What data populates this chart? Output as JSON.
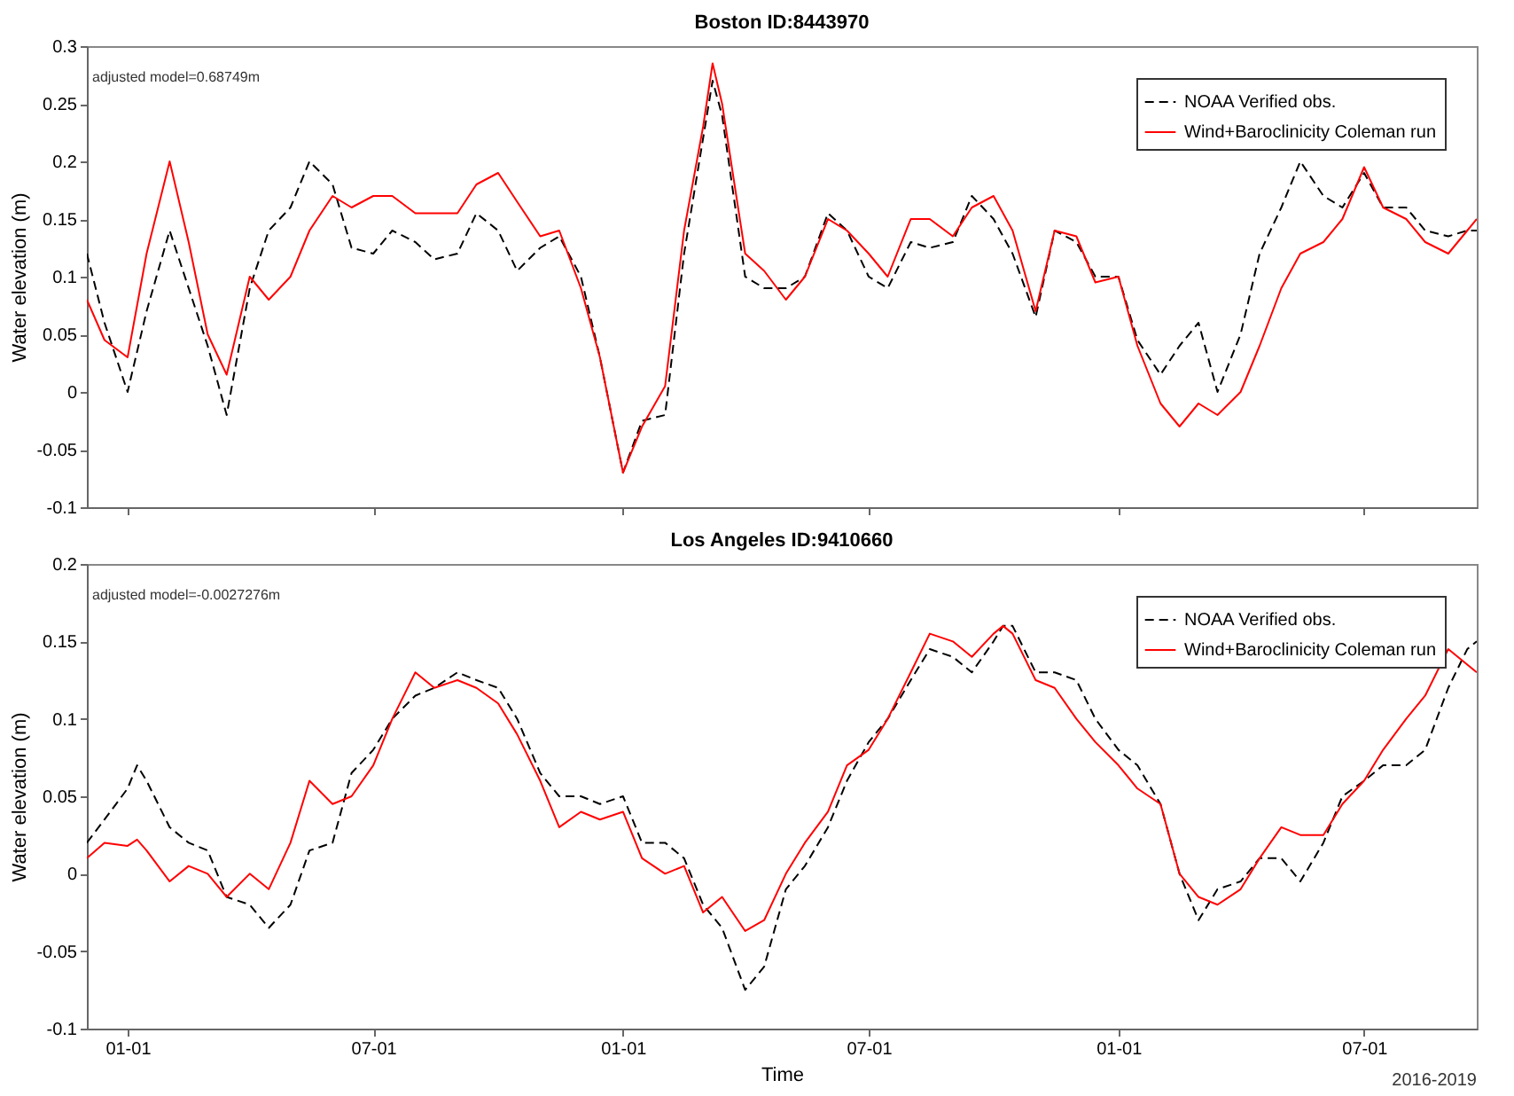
{
  "chart_data": [
    {
      "type": "line",
      "title": "Boston ID:8443970",
      "ylabel": "Water elevation (m)",
      "annotations": [
        "adjusted model=0.68749m"
      ],
      "x": [
        "2016-12-02",
        "2016-12-15",
        "2017-01-01",
        "2017-01-15",
        "2017-02-01",
        "2017-02-15",
        "2017-03-01",
        "2017-03-15",
        "2017-04-01",
        "2017-04-15",
        "2017-05-01",
        "2017-05-15",
        "2017-06-01",
        "2017-06-15",
        "2017-07-01",
        "2017-07-15",
        "2017-08-01",
        "2017-08-15",
        "2017-09-01",
        "2017-09-15",
        "2017-10-01",
        "2017-10-15",
        "2017-11-01",
        "2017-11-15",
        "2017-12-01",
        "2017-12-15",
        "2018-01-01",
        "2018-01-15",
        "2018-02-01",
        "2018-02-15",
        "2018-03-01",
        "2018-03-08",
        "2018-03-15",
        "2018-04-01",
        "2018-04-15",
        "2018-05-01",
        "2018-05-15",
        "2018-06-01",
        "2018-06-15",
        "2018-07-01",
        "2018-07-15",
        "2018-08-01",
        "2018-08-15",
        "2018-09-01",
        "2018-09-15",
        "2018-10-01",
        "2018-10-15",
        "2018-11-01",
        "2018-11-15",
        "2018-12-01",
        "2018-12-15",
        "2019-01-01",
        "2019-01-15",
        "2019-02-01",
        "2019-02-15",
        "2019-03-01",
        "2019-03-15",
        "2019-04-01",
        "2019-04-15",
        "2019-05-01",
        "2019-05-15",
        "2019-06-01",
        "2019-06-15",
        "2019-07-01",
        "2019-07-15",
        "2019-08-01",
        "2019-08-15",
        "2019-09-01",
        "2019-09-15",
        "2019-09-22"
      ],
      "series": [
        {
          "name": "NOAA Verified obs.",
          "color": "#000000",
          "line_style": "dashed",
          "values": [
            0.12,
            0.06,
            0.0,
            0.07,
            0.14,
            0.09,
            0.04,
            -0.02,
            0.09,
            0.14,
            0.16,
            0.2,
            0.18,
            0.125,
            0.12,
            0.14,
            0.13,
            0.115,
            0.12,
            0.155,
            0.14,
            0.105,
            0.125,
            0.135,
            0.1,
            0.03,
            -0.07,
            -0.025,
            -0.02,
            0.12,
            0.22,
            0.27,
            0.24,
            0.1,
            0.09,
            0.09,
            0.1,
            0.155,
            0.14,
            0.1,
            0.09,
            0.13,
            0.125,
            0.13,
            0.17,
            0.15,
            0.12,
            0.065,
            0.14,
            0.13,
            0.1,
            0.1,
            0.045,
            0.015,
            0.04,
            0.06,
            0.0,
            0.05,
            0.12,
            0.16,
            0.2,
            0.17,
            0.16,
            0.19,
            0.16,
            0.16,
            0.14,
            0.135,
            0.14,
            0.14
          ]
        },
        {
          "name": "Wind+Baroclinicity Coleman run",
          "color": "#ff0000",
          "line_style": "solid",
          "values": [
            0.08,
            0.045,
            0.03,
            0.12,
            0.2,
            0.13,
            0.05,
            0.015,
            0.1,
            0.08,
            0.1,
            0.14,
            0.17,
            0.16,
            0.17,
            0.17,
            0.155,
            0.155,
            0.155,
            0.18,
            0.19,
            0.165,
            0.135,
            0.14,
            0.09,
            0.03,
            -0.07,
            -0.03,
            0.005,
            0.14,
            0.23,
            0.285,
            0.25,
            0.12,
            0.105,
            0.08,
            0.1,
            0.15,
            0.14,
            0.12,
            0.1,
            0.15,
            0.15,
            0.135,
            0.16,
            0.17,
            0.14,
            0.07,
            0.14,
            0.135,
            0.095,
            0.1,
            0.04,
            -0.01,
            -0.03,
            -0.01,
            -0.02,
            0.0,
            0.04,
            0.09,
            0.12,
            0.13,
            0.15,
            0.195,
            0.16,
            0.15,
            0.13,
            0.12,
            0.14,
            0.15
          ]
        }
      ],
      "xlim": [
        "2016-12-02",
        "2019-09-22"
      ],
      "xticks": [
        {
          "value": "2017-01-01",
          "label": null
        },
        {
          "value": "2017-07-01",
          "label": null
        },
        {
          "value": "2018-01-01",
          "label": null
        },
        {
          "value": "2018-07-01",
          "label": null
        },
        {
          "value": "2019-01-01",
          "label": null
        },
        {
          "value": "2019-07-01",
          "label": null
        }
      ],
      "ylim": [
        -0.1,
        0.3
      ],
      "yticks": [
        -0.1,
        -0.05,
        0,
        0.05,
        0.1,
        0.15,
        0.2,
        0.25,
        0.3
      ],
      "tick_labels": "y",
      "legend": "top right"
    },
    {
      "type": "line",
      "title": "Los Angeles ID:9410660",
      "xlabel": "Time",
      "ylabel": "Water elevation (m)",
      "annotations": [
        "adjusted model=-0.0027276m",
        "2016-2019"
      ],
      "x": [
        "2016-12-02",
        "2016-12-15",
        "2017-01-01",
        "2017-01-08",
        "2017-01-15",
        "2017-02-01",
        "2017-02-15",
        "2017-03-01",
        "2017-03-15",
        "2017-04-01",
        "2017-04-15",
        "2017-05-01",
        "2017-05-15",
        "2017-06-01",
        "2017-06-15",
        "2017-07-01",
        "2017-07-15",
        "2017-08-01",
        "2017-08-15",
        "2017-09-01",
        "2017-09-15",
        "2017-10-01",
        "2017-10-15",
        "2017-11-01",
        "2017-11-15",
        "2017-12-01",
        "2017-12-15",
        "2018-01-01",
        "2018-01-15",
        "2018-02-01",
        "2018-02-15",
        "2018-03-01",
        "2018-03-15",
        "2018-04-01",
        "2018-04-15",
        "2018-05-01",
        "2018-05-15",
        "2018-06-01",
        "2018-06-15",
        "2018-07-01",
        "2018-07-15",
        "2018-08-01",
        "2018-08-15",
        "2018-09-01",
        "2018-09-15",
        "2018-10-01",
        "2018-10-08",
        "2018-10-15",
        "2018-11-01",
        "2018-11-15",
        "2018-12-01",
        "2018-12-15",
        "2019-01-01",
        "2019-01-15",
        "2019-02-01",
        "2019-02-15",
        "2019-03-01",
        "2019-03-15",
        "2019-04-01",
        "2019-04-15",
        "2019-05-01",
        "2019-05-15",
        "2019-06-01",
        "2019-06-15",
        "2019-07-01",
        "2019-07-15",
        "2019-08-01",
        "2019-08-15",
        "2019-09-01",
        "2019-09-15",
        "2019-09-22"
      ],
      "series": [
        {
          "name": "NOAA Verified obs.",
          "color": "#000000",
          "line_style": "dashed",
          "values": [
            0.02,
            0.035,
            0.055,
            0.07,
            0.06,
            0.03,
            0.02,
            0.015,
            -0.015,
            -0.02,
            -0.035,
            -0.02,
            0.015,
            0.02,
            0.065,
            0.08,
            0.1,
            0.115,
            0.12,
            0.13,
            0.125,
            0.12,
            0.1,
            0.065,
            0.05,
            0.05,
            0.045,
            0.05,
            0.02,
            0.02,
            0.01,
            -0.02,
            -0.035,
            -0.075,
            -0.06,
            -0.01,
            0.005,
            0.03,
            0.06,
            0.085,
            0.1,
            0.125,
            0.145,
            0.14,
            0.13,
            0.15,
            0.16,
            0.16,
            0.13,
            0.13,
            0.125,
            0.1,
            0.08,
            0.07,
            0.045,
            0.0,
            -0.03,
            -0.01,
            -0.005,
            0.01,
            0.01,
            -0.005,
            0.02,
            0.05,
            0.06,
            0.07,
            0.07,
            0.08,
            0.12,
            0.145,
            0.15
          ]
        },
        {
          "name": "Wind+Baroclinicity Coleman run",
          "color": "#ff0000",
          "line_style": "solid",
          "values": [
            0.01,
            0.02,
            0.018,
            0.022,
            0.015,
            -0.005,
            0.005,
            0.0,
            -0.015,
            0.0,
            -0.01,
            0.02,
            0.06,
            0.045,
            0.05,
            0.07,
            0.1,
            0.13,
            0.12,
            0.125,
            0.12,
            0.11,
            0.09,
            0.06,
            0.03,
            0.04,
            0.035,
            0.04,
            0.01,
            0.0,
            0.005,
            -0.025,
            -0.015,
            -0.037,
            -0.03,
            0.0,
            0.02,
            0.04,
            0.07,
            0.08,
            0.1,
            0.13,
            0.155,
            0.15,
            0.14,
            0.155,
            0.16,
            0.155,
            0.125,
            0.12,
            0.1,
            0.085,
            0.07,
            0.055,
            0.045,
            0.0,
            -0.015,
            -0.02,
            -0.01,
            0.01,
            0.03,
            0.025,
            0.025,
            0.045,
            0.06,
            0.08,
            0.1,
            0.115,
            0.145,
            0.135,
            0.13
          ]
        }
      ],
      "xlim": [
        "2016-12-02",
        "2019-09-22"
      ],
      "xticks": [
        {
          "value": "2017-01-01",
          "label": "01-01"
        },
        {
          "value": "2017-07-01",
          "label": "07-01"
        },
        {
          "value": "2018-01-01",
          "label": "01-01"
        },
        {
          "value": "2018-07-01",
          "label": "07-01"
        },
        {
          "value": "2019-01-01",
          "label": "01-01"
        },
        {
          "value": "2019-07-01",
          "label": "07-01"
        }
      ],
      "ylim": [
        -0.1,
        0.2
      ],
      "yticks": [
        -0.1,
        -0.05,
        0,
        0.05,
        0.1,
        0.15,
        0.2
      ],
      "legend": "top right"
    }
  ]
}
